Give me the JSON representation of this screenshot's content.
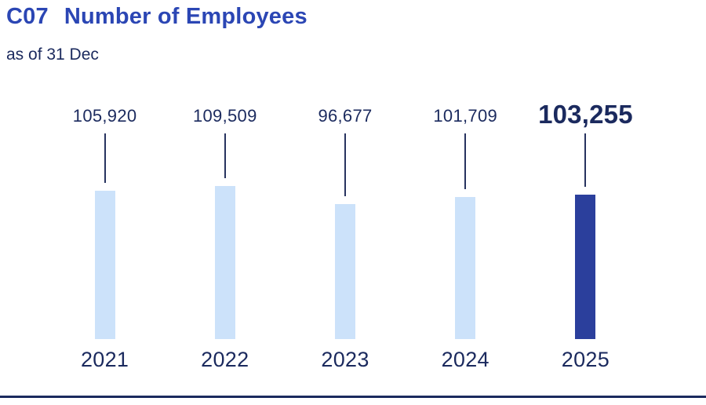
{
  "header": {
    "code": "C07",
    "title": "Number of Employees",
    "subtitle": "as of 31 Dec"
  },
  "chart_data": {
    "type": "bar",
    "title": "C07 Number of Employees",
    "subtitle": "as of 31 Dec",
    "categories": [
      "2021",
      "2022",
      "2023",
      "2024",
      "2025"
    ],
    "values": [
      105920,
      109509,
      96677,
      101709,
      103255
    ],
    "value_labels": [
      "105,920",
      "109,509",
      "96,677",
      "101,709",
      "103,255"
    ],
    "xlabel": "",
    "ylabel": "",
    "ylim": [
      0,
      110000
    ],
    "grid": false,
    "legend": false,
    "highlight_index": 4,
    "bar_color": "#cce2fa",
    "highlight_color": "#2b3f9c"
  },
  "colors": {
    "title": "#2b46b4",
    "text": "#1b2a5e",
    "bar": "#cce2fa",
    "bar_highlight": "#2b3f9c",
    "leader_line": "#27335f",
    "divider": "#1b2a5e",
    "background": "#ffffff"
  }
}
